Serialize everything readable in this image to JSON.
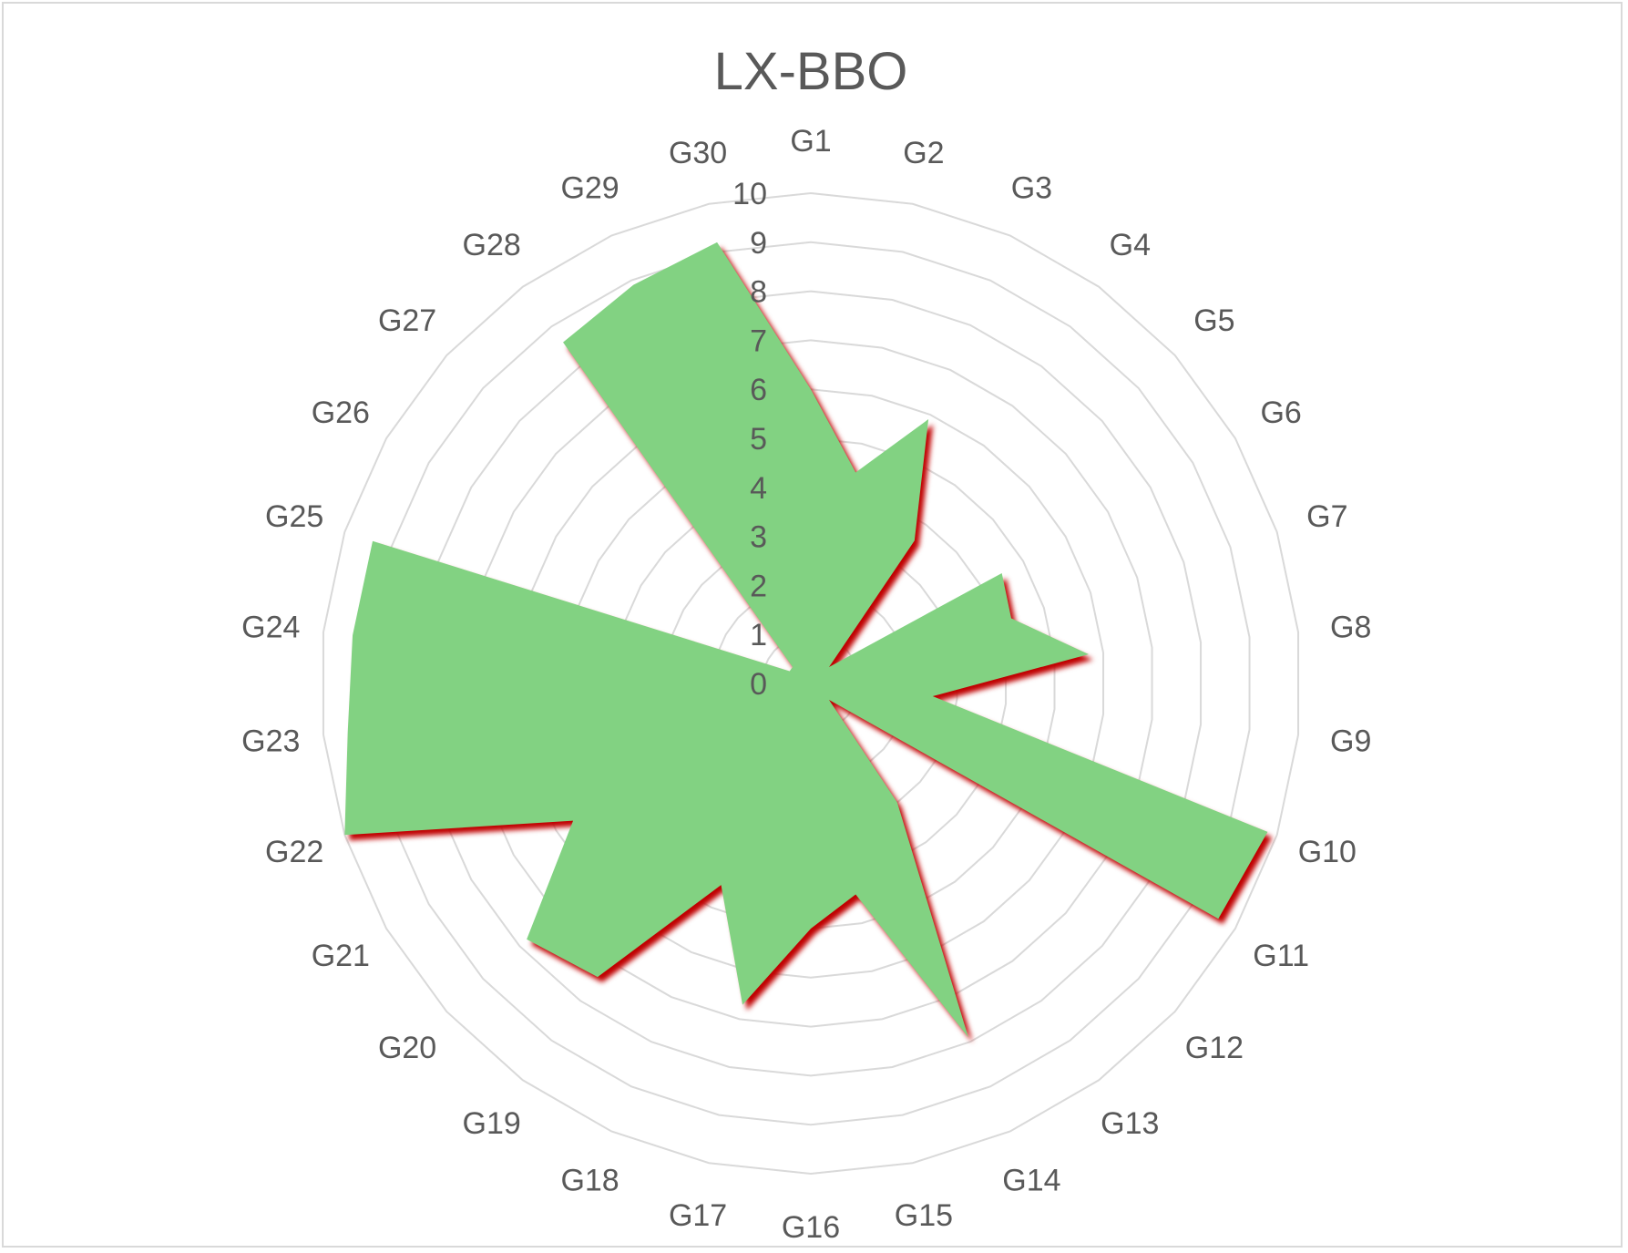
{
  "chart_data": {
    "type": "radar",
    "title": "LX-BBO",
    "categories": [
      "G1",
      "G2",
      "G3",
      "G4",
      "G5",
      "G6",
      "G7",
      "G8",
      "G9",
      "G10",
      "G11",
      "G12",
      "G13",
      "G14",
      "G15",
      "G16",
      "G17",
      "G18",
      "G19",
      "G20",
      "G21",
      "G22",
      "G23",
      "G24",
      "G25",
      "G26",
      "G27",
      "G28",
      "G29",
      "G30"
    ],
    "series": [
      {
        "name": "LX-BBO",
        "values": [
          6.0,
          4.4,
          5.9,
          3.6,
          0.5,
          4.5,
          4.3,
          5.7,
          2.5,
          9.8,
          9.6,
          0.5,
          3.0,
          7.9,
          4.4,
          5.0,
          6.7,
          4.5,
          7.4,
          7.8,
          5.6,
          10.0,
          9.5,
          9.4,
          9.4,
          0.5,
          0.5,
          8.6,
          8.9,
          9.2
        ],
        "fill": "#82d282",
        "shadow": "#c00000"
      }
    ],
    "rlim": [
      0,
      10
    ],
    "ticks": [
      "0",
      "1",
      "2",
      "3",
      "4",
      "5",
      "6",
      "7",
      "8",
      "9",
      "10"
    ],
    "grid": true
  }
}
